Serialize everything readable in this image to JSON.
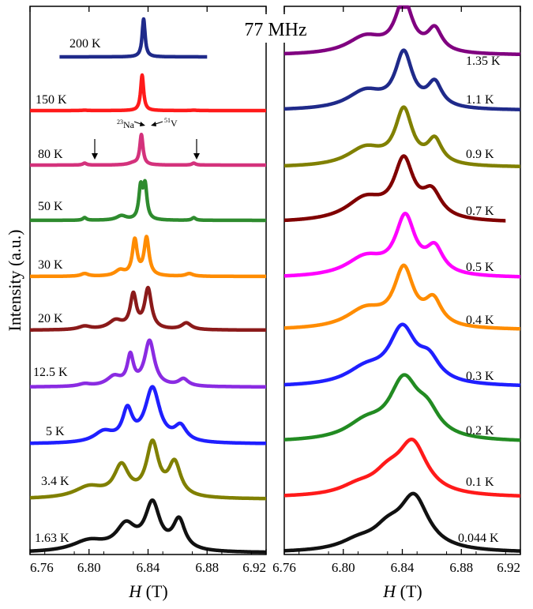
{
  "frequency_title": "77 MHz",
  "y_axis_label": "Intensity (a.u.)",
  "x_axis_label_symbol": "H",
  "x_axis_label_unit": "(T)",
  "annotations": {
    "na": {
      "sup": "23",
      "text": "Na"
    },
    "v": {
      "sup": "51",
      "text": "V"
    }
  },
  "chart_data": [
    {
      "type": "line",
      "panel": "left",
      "xlabel": "H (T)",
      "ylabel": "Intensity (a.u.)",
      "xlim": [
        6.76,
        6.92
      ],
      "xticks": [
        "6.76",
        "6.80",
        "6.84",
        "6.88",
        "6.92"
      ],
      "series": [
        {
          "name": "200 K",
          "color": "#1f2a8a",
          "marker": "circle",
          "x_range": [
            6.78,
            6.88
          ],
          "peaks": [
            {
              "x": 6.837,
              "h": 6.0,
              "w": 0.0012
            }
          ],
          "baseline": 0
        },
        {
          "name": "150 K",
          "color": "#ff1a1a",
          "marker": "triangle",
          "x_range": [
            6.76,
            6.92
          ],
          "peaks": [
            {
              "x": 6.836,
              "h": 4.5,
              "w": 0.0012
            },
            {
              "x": 6.797,
              "h": 0.05,
              "w": 0.002
            },
            {
              "x": 6.871,
              "h": 0.05,
              "w": 0.002
            }
          ],
          "baseline": 0
        },
        {
          "name": "80 K",
          "color": "#d4327c",
          "marker": "circle",
          "x_range": [
            6.76,
            6.92
          ],
          "peaks": [
            {
              "x": 6.8355,
              "h": 1.9,
              "w": 0.0013
            },
            {
              "x": 6.83,
              "h": 0.12,
              "w": 0.004
            },
            {
              "x": 6.797,
              "h": 0.12,
              "w": 0.0015
            },
            {
              "x": 6.871,
              "h": 0.12,
              "w": 0.0015
            }
          ],
          "baseline": 0
        },
        {
          "name": "50 K",
          "color": "#2e8b2e",
          "marker": "circle",
          "x_range": [
            6.76,
            6.92
          ],
          "peaks": [
            {
              "x": 6.835,
              "h": 1.8,
              "w": 0.0015
            },
            {
              "x": 6.838,
              "h": 1.9,
              "w": 0.0015
            },
            {
              "x": 6.822,
              "h": 0.25,
              "w": 0.004
            },
            {
              "x": 6.797,
              "h": 0.15,
              "w": 0.0015
            },
            {
              "x": 6.871,
              "h": 0.15,
              "w": 0.0015
            }
          ],
          "baseline": 0
        },
        {
          "name": "30 K",
          "color": "#ff8c00",
          "marker": "circle",
          "x_range": [
            6.76,
            6.92
          ],
          "peaks": [
            {
              "x": 6.831,
              "h": 1.6,
              "w": 0.002
            },
            {
              "x": 6.839,
              "h": 1.7,
              "w": 0.002
            },
            {
              "x": 6.821,
              "h": 0.25,
              "w": 0.004
            },
            {
              "x": 6.797,
              "h": 0.12,
              "w": 0.003
            },
            {
              "x": 6.868,
              "h": 0.12,
              "w": 0.003
            }
          ],
          "baseline": 0
        },
        {
          "name": "20 K",
          "color": "#8b1a1a",
          "marker": "plus",
          "x_range": [
            6.76,
            6.92
          ],
          "peaks": [
            {
              "x": 6.83,
              "h": 1.5,
              "w": 0.0025
            },
            {
              "x": 6.84,
              "h": 1.8,
              "w": 0.0028
            },
            {
              "x": 6.818,
              "h": 0.4,
              "w": 0.006
            },
            {
              "x": 6.797,
              "h": 0.15,
              "w": 0.005
            },
            {
              "x": 6.866,
              "h": 0.3,
              "w": 0.004
            }
          ],
          "baseline": 0
        },
        {
          "name": "12.5 K",
          "color": "#8a2be2",
          "marker": "circle",
          "x_range": [
            6.76,
            6.92
          ],
          "peaks": [
            {
              "x": 6.828,
              "h": 1.2,
              "w": 0.0025
            },
            {
              "x": 6.841,
              "h": 1.9,
              "w": 0.004
            },
            {
              "x": 6.817,
              "h": 0.4,
              "w": 0.006
            },
            {
              "x": 6.797,
              "h": 0.1,
              "w": 0.005
            },
            {
              "x": 6.864,
              "h": 0.3,
              "w": 0.004
            }
          ],
          "baseline": 0
        },
        {
          "name": "5 K",
          "color": "#1f1fff",
          "marker": "circle",
          "x_range": [
            6.76,
            6.92
          ],
          "peaks": [
            {
              "x": 6.826,
              "h": 1.0,
              "w": 0.004
            },
            {
              "x": 6.843,
              "h": 1.8,
              "w": 0.006
            },
            {
              "x": 6.81,
              "h": 0.35,
              "w": 0.008
            },
            {
              "x": 6.862,
              "h": 0.5,
              "w": 0.005
            }
          ],
          "baseline": 0
        },
        {
          "name": "3.4 K",
          "color": "#808000",
          "marker": "circle",
          "x_range": [
            6.76,
            6.92
          ],
          "peaks": [
            {
              "x": 6.822,
              "h": 1.1,
              "w": 0.006
            },
            {
              "x": 6.843,
              "h": 1.9,
              "w": 0.005
            },
            {
              "x": 6.858,
              "h": 1.2,
              "w": 0.005
            },
            {
              "x": 6.8,
              "h": 0.4,
              "w": 0.012
            }
          ],
          "baseline": 0
        },
        {
          "name": "1.63 K",
          "color": "#111111",
          "marker": "circle",
          "x_range": [
            6.76,
            6.92
          ],
          "peaks": [
            {
              "x": 6.825,
              "h": 0.9,
              "w": 0.008
            },
            {
              "x": 6.843,
              "h": 1.7,
              "w": 0.006
            },
            {
              "x": 6.861,
              "h": 1.1,
              "w": 0.005
            },
            {
              "x": 6.8,
              "h": 0.4,
              "w": 0.014
            }
          ],
          "baseline": 0
        }
      ]
    },
    {
      "type": "line",
      "panel": "right",
      "xlabel": "H (T)",
      "ylabel": "",
      "xlim": [
        6.76,
        6.92
      ],
      "xticks": [
        "6.76",
        "6.80",
        "6.84",
        "6.88",
        "6.92"
      ],
      "series": [
        {
          "name": "1.35 K",
          "color": "#800080",
          "marker": "circle",
          "x_range": [
            6.76,
            6.92
          ],
          "peaks": [
            {
              "x": 6.841,
              "h": 1.8,
              "w": 0.007
            },
            {
              "x": 6.862,
              "h": 0.8,
              "w": 0.006
            },
            {
              "x": 6.815,
              "h": 0.6,
              "w": 0.015
            }
          ],
          "baseline": 0
        },
        {
          "name": "1.1 K",
          "color": "#1f2a8a",
          "marker": "circle",
          "x_range": [
            6.76,
            6.92
          ],
          "peaks": [
            {
              "x": 6.841,
              "h": 1.8,
              "w": 0.007
            },
            {
              "x": 6.862,
              "h": 0.8,
              "w": 0.006
            },
            {
              "x": 6.815,
              "h": 0.6,
              "w": 0.015
            }
          ],
          "baseline": 0
        },
        {
          "name": "0.9 K",
          "color": "#808000",
          "marker": "circle",
          "x_range": [
            6.76,
            6.92
          ],
          "peaks": [
            {
              "x": 6.841,
              "h": 1.8,
              "w": 0.007
            },
            {
              "x": 6.862,
              "h": 0.8,
              "w": 0.006
            },
            {
              "x": 6.815,
              "h": 0.6,
              "w": 0.015
            }
          ],
          "baseline": 0
        },
        {
          "name": "0.7 K",
          "color": "#800000",
          "marker": "cross",
          "x_range": [
            6.76,
            6.91
          ],
          "peaks": [
            {
              "x": 6.841,
              "h": 1.8,
              "w": 0.008
            },
            {
              "x": 6.86,
              "h": 0.8,
              "w": 0.008
            },
            {
              "x": 6.815,
              "h": 0.7,
              "w": 0.016
            }
          ],
          "baseline": 0
        },
        {
          "name": "0.5 K",
          "color": "#ff00ff",
          "marker": "circle",
          "x_range": [
            6.76,
            6.92
          ],
          "peaks": [
            {
              "x": 6.842,
              "h": 1.8,
              "w": 0.008
            },
            {
              "x": 6.862,
              "h": 0.8,
              "w": 0.007
            },
            {
              "x": 6.815,
              "h": 0.6,
              "w": 0.016
            }
          ],
          "baseline": 0
        },
        {
          "name": "0.4 K",
          "color": "#ff8c00",
          "marker": "circle",
          "x_range": [
            6.76,
            6.92
          ],
          "peaks": [
            {
              "x": 6.841,
              "h": 1.8,
              "w": 0.008
            },
            {
              "x": 6.861,
              "h": 0.8,
              "w": 0.007
            },
            {
              "x": 6.815,
              "h": 0.6,
              "w": 0.016
            }
          ],
          "baseline": 0
        },
        {
          "name": "0.3 K",
          "color": "#1f1fff",
          "marker": "circle",
          "x_range": [
            6.76,
            6.92
          ],
          "peaks": [
            {
              "x": 6.84,
              "h": 1.8,
              "w": 0.011
            },
            {
              "x": 6.858,
              "h": 0.7,
              "w": 0.009
            },
            {
              "x": 6.815,
              "h": 0.5,
              "w": 0.016
            }
          ],
          "baseline": 0
        },
        {
          "name": "0.2 K",
          "color": "#228b22",
          "marker": "triangle",
          "x_range": [
            6.76,
            6.92
          ],
          "peaks": [
            {
              "x": 6.841,
              "h": 1.8,
              "w": 0.012
            },
            {
              "x": 6.857,
              "h": 0.7,
              "w": 0.01
            },
            {
              "x": 6.815,
              "h": 0.5,
              "w": 0.016
            }
          ],
          "baseline": 0
        },
        {
          "name": "0.1 K",
          "color": "#ff1a1a",
          "marker": "circle",
          "x_range": [
            6.76,
            6.92
          ],
          "peaks": [
            {
              "x": 6.847,
              "h": 1.8,
              "w": 0.012
            },
            {
              "x": 6.83,
              "h": 0.6,
              "w": 0.012
            },
            {
              "x": 6.81,
              "h": 0.3,
              "w": 0.015
            }
          ],
          "baseline": 0
        },
        {
          "name": "0.044 K",
          "color": "#111111",
          "marker": "circle",
          "x_range": [
            6.76,
            6.92
          ],
          "peaks": [
            {
              "x": 6.848,
              "h": 1.8,
              "w": 0.012
            },
            {
              "x": 6.83,
              "h": 0.6,
              "w": 0.012
            },
            {
              "x": 6.81,
              "h": 0.3,
              "w": 0.015
            }
          ],
          "baseline": 0
        }
      ]
    }
  ]
}
